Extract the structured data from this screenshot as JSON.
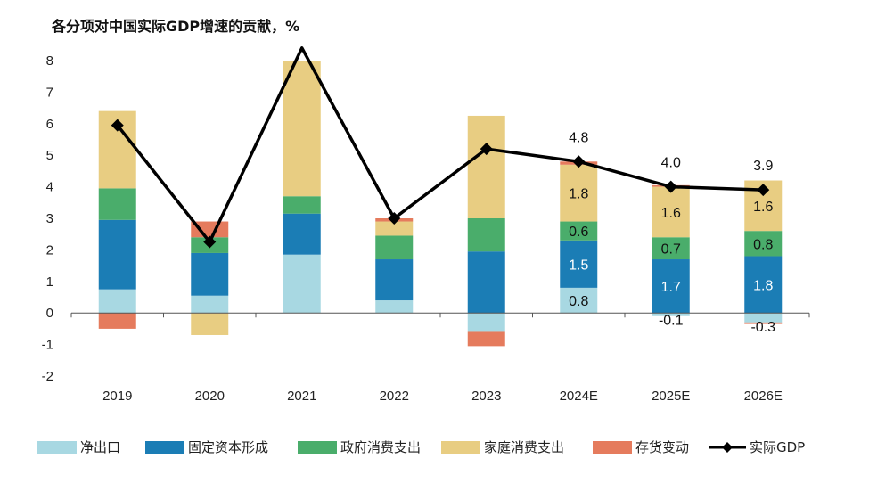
{
  "chart_data": {
    "type": "bar",
    "title": "各分项对中国实际GDP增速的贡献，%",
    "categories": [
      "2019",
      "2020",
      "2021",
      "2022",
      "2023",
      "2024E",
      "2025E",
      "2026E"
    ],
    "ylim": [
      -2,
      8
    ],
    "yticks": [
      "-2",
      "-1",
      "0",
      "1",
      "2",
      "3",
      "4",
      "5",
      "6",
      "7",
      "8"
    ],
    "grid": false,
    "legend_position": "bottom",
    "series": [
      {
        "name": "净出口",
        "color": "#a8d8e2",
        "values": [
          0.75,
          0.55,
          1.85,
          0.4,
          -0.6,
          0.8,
          -0.1,
          -0.3
        ]
      },
      {
        "name": "固定资本形成",
        "color": "#1b7db5",
        "values": [
          2.2,
          1.35,
          1.3,
          1.3,
          1.95,
          1.5,
          1.7,
          1.8
        ]
      },
      {
        "name": "政府消费支出",
        "color": "#4aad6b",
        "values": [
          1.0,
          0.5,
          0.55,
          0.75,
          1.05,
          0.6,
          0.7,
          0.8
        ]
      },
      {
        "name": "家庭消费支出",
        "color": "#e8cd82",
        "values": [
          2.45,
          -0.7,
          4.3,
          0.45,
          3.25,
          1.8,
          1.6,
          1.6
        ]
      },
      {
        "name": "存货变动",
        "color": "#e57b5d",
        "values": [
          -0.5,
          0.5,
          0,
          0.1,
          -0.45,
          0.1,
          0.05,
          -0.05
        ]
      }
    ],
    "line": {
      "name": "实际GDP",
      "color": "#000000",
      "values": [
        5.95,
        2.25,
        8.4,
        3.0,
        5.2,
        4.8,
        4.0,
        3.9
      ]
    },
    "data_labels": [
      {
        "category": "2024E",
        "series": "净出口",
        "text": "0.8"
      },
      {
        "category": "2024E",
        "series": "固定资本形成",
        "text": "1.5"
      },
      {
        "category": "2024E",
        "series": "政府消费支出",
        "text": "0.6"
      },
      {
        "category": "2024E",
        "series": "家庭消费支出",
        "text": "1.8"
      },
      {
        "category": "2024E",
        "series": "实际GDP",
        "text": "4.8"
      },
      {
        "category": "2025E",
        "series": "净出口",
        "text": "-0.1"
      },
      {
        "category": "2025E",
        "series": "固定资本形成",
        "text": "1.7"
      },
      {
        "category": "2025E",
        "series": "政府消费支出",
        "text": "0.7"
      },
      {
        "category": "2025E",
        "series": "家庭消费支出",
        "text": "1.6"
      },
      {
        "category": "2025E",
        "series": "实际GDP",
        "text": "4.0"
      },
      {
        "category": "2026E",
        "series": "净出口",
        "text": "-0.3"
      },
      {
        "category": "2026E",
        "series": "固定资本形成",
        "text": "1.8"
      },
      {
        "category": "2026E",
        "series": "政府消费支出",
        "text": "0.8"
      },
      {
        "category": "2026E",
        "series": "家庭消费支出",
        "text": "1.6"
      },
      {
        "category": "2026E",
        "series": "实际GDP",
        "text": "3.9"
      }
    ]
  }
}
